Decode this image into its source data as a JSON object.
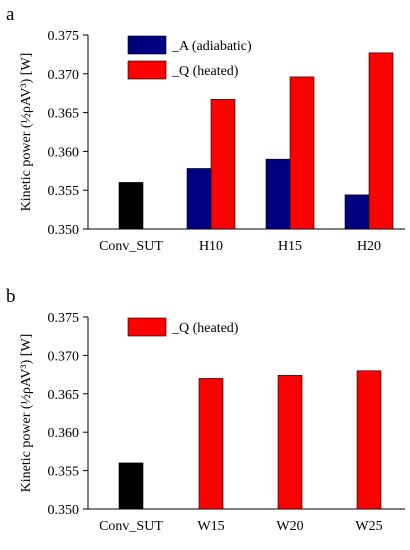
{
  "chart_data": [
    {
      "panel": "a",
      "type": "bar",
      "ylabel": "Kinetic power (½ρAV³) [W]",
      "ylim": [
        0.35,
        0.375
      ],
      "yticks": [
        "0.350",
        "0.355",
        "0.360",
        "0.365",
        "0.370",
        "0.375"
      ],
      "categories": [
        "Conv_SUT",
        "H10",
        "H15",
        "H20"
      ],
      "baseline": {
        "category": "Conv_SUT",
        "value": 0.356,
        "color": "#000000"
      },
      "series": [
        {
          "name": "_A (adiabatic)",
          "color": "#000080",
          "values": [
            null,
            0.3578,
            0.359,
            0.3544
          ]
        },
        {
          "name": "_Q (heated)",
          "color": "#ff0000",
          "values": [
            null,
            0.3667,
            0.3696,
            0.3727
          ]
        }
      ],
      "legend": "top-left"
    },
    {
      "panel": "b",
      "type": "bar",
      "ylabel": "Kinetic power (½ρAV³) [W]",
      "ylim": [
        0.35,
        0.375
      ],
      "yticks": [
        "0.350",
        "0.355",
        "0.360",
        "0.365",
        "0.370",
        "0.375"
      ],
      "categories": [
        "Conv_SUT",
        "W15",
        "W20",
        "W25"
      ],
      "baseline": {
        "category": "Conv_SUT",
        "value": 0.356,
        "color": "#000000"
      },
      "series": [
        {
          "name": "_Q (heated)",
          "color": "#ff0000",
          "values": [
            null,
            0.367,
            0.3674,
            0.368
          ]
        }
      ],
      "legend": "top-left"
    }
  ]
}
